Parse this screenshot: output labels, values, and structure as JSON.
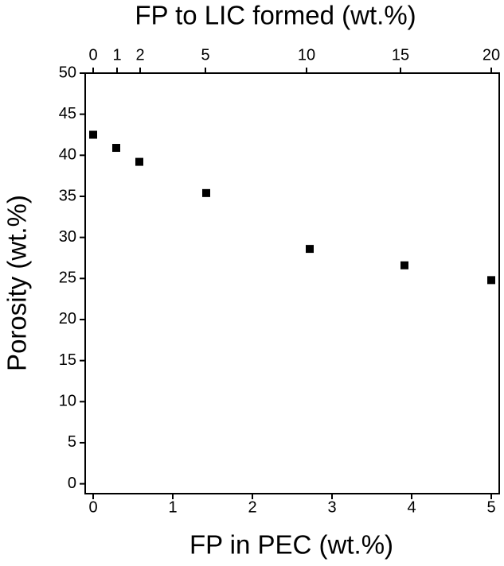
{
  "chart_data": {
    "type": "scatter",
    "x_label": "FP in PEC (wt.%)",
    "x2_label": "FP to LIC formed (wt.%)",
    "y_label": "Porosity (wt.%)",
    "x": [
      0,
      0.29,
      0.58,
      1.42,
      2.72,
      3.91,
      5
    ],
    "series": [
      {
        "color": "#000000",
        "values": [
          42.5,
          40.9,
          39.2,
          35.4,
          28.6,
          26.6,
          24.8
        ]
      }
    ],
    "xlim": [
      -0.1,
      5.1
    ],
    "ylim": [
      -1.2,
      50
    ],
    "xticks": [
      0,
      1,
      2,
      3,
      4,
      5
    ],
    "x2ticks": [
      {
        "value": 0,
        "label": "0"
      },
      {
        "value": 0.3,
        "label": "1"
      },
      {
        "value": 0.59,
        "label": "2"
      },
      {
        "value": 1.41,
        "label": "5"
      },
      {
        "value": 2.68,
        "label": "10"
      },
      {
        "value": 3.86,
        "label": "15"
      },
      {
        "value": 5,
        "label": "20"
      }
    ],
    "yticks": [
      0,
      5,
      10,
      15,
      20,
      25,
      30,
      35,
      40,
      45,
      50
    ],
    "grid": false
  }
}
